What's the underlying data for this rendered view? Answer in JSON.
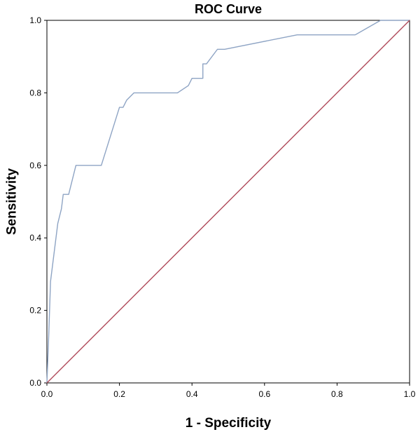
{
  "chart_data": {
    "type": "line",
    "title": "ROC Curve",
    "xlabel": "1 - Specificity",
    "ylabel": "Sensitivity",
    "xlim": [
      0,
      1
    ],
    "ylim": [
      0,
      1
    ],
    "x_ticks": [
      "0.0",
      "0.2",
      "0.4",
      "0.6",
      "0.8",
      "1.0"
    ],
    "y_ticks": [
      "0.0",
      "0.2",
      "0.4",
      "0.6",
      "0.8",
      "1.0"
    ],
    "grid": false,
    "legend": "none",
    "series": [
      {
        "color": "#8ea4c4",
        "x": [
          0,
          0.005,
          0.01,
          0.02,
          0.03,
          0.04,
          0.045,
          0.06,
          0.08,
          0.15,
          0.2,
          0.21,
          0.22,
          0.24,
          0.36,
          0.39,
          0.4,
          0.41,
          0.43,
          0.43,
          0.44,
          0.47,
          0.49,
          0.69,
          0.85,
          0.92,
          1.0
        ],
        "y": [
          0,
          0.13,
          0.28,
          0.36,
          0.44,
          0.48,
          0.52,
          0.52,
          0.6,
          0.6,
          0.76,
          0.76,
          0.78,
          0.8,
          0.8,
          0.82,
          0.84,
          0.84,
          0.84,
          0.88,
          0.88,
          0.92,
          0.92,
          0.96,
          0.96,
          1.0,
          1.0
        ]
      },
      {
        "color": "#b04a5a",
        "x": [
          0,
          1
        ],
        "y": [
          0,
          1
        ]
      }
    ]
  }
}
